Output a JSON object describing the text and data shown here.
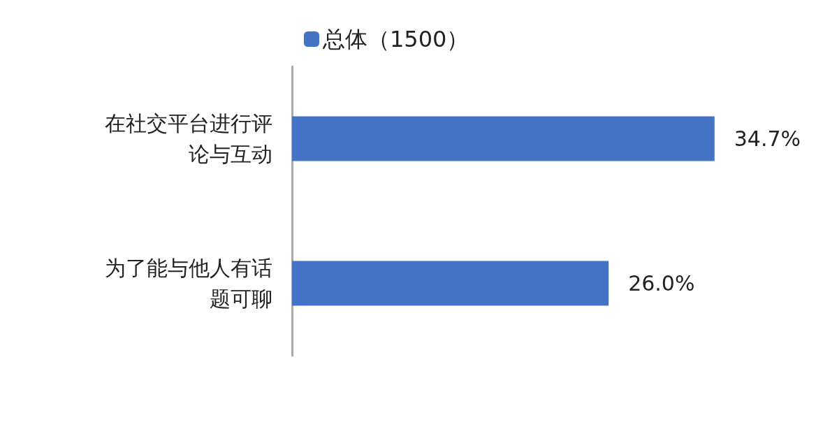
{
  "chart_data": {
    "type": "bar",
    "orientation": "horizontal",
    "categories": [
      "在社交平台进行评论与互动",
      "为了能与他人有话题可聊"
    ],
    "series": [
      {
        "name": "总体（1500）",
        "color": "#4472c4",
        "values": [
          34.7,
          26.0
        ],
        "value_labels": [
          "34.7%",
          "26.0%"
        ]
      }
    ],
    "legend": "top"
  }
}
